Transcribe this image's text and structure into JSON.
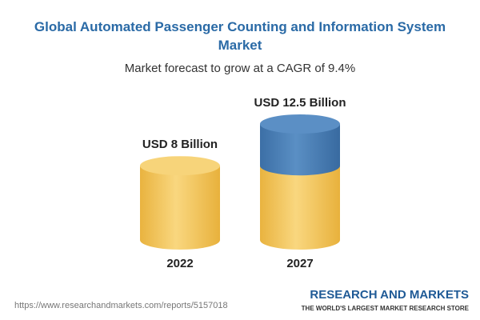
{
  "chart_data": {
    "type": "cylinder",
    "title": "Global Automated Passenger Counting and Information System Market",
    "subtitle": "Market forecast to grow at a CAGR of 9.4%",
    "categories": [
      "2022",
      "2027"
    ],
    "values": [
      8,
      12.5
    ],
    "value_labels": [
      "USD 8 Billion",
      "USD 12.5 Billion"
    ],
    "color": "#f2c255",
    "growth_color": "#4a7fb6"
  },
  "footer": {
    "url": "https://www.researchandmarkets.com/reports/5157018",
    "brand": "RESEARCH AND MARKETS",
    "tagline": "THE WORLD'S LARGEST MARKET RESEARCH STORE"
  }
}
